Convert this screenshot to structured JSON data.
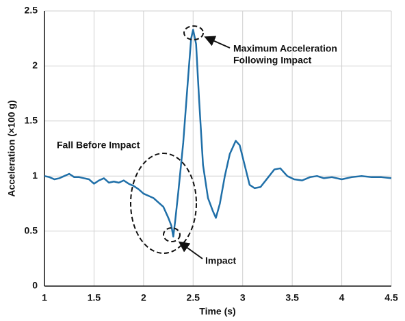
{
  "chart_data": {
    "type": "line",
    "x_label": "Time (s)",
    "y_label": "Acceleration (×100 g)",
    "annotations": {
      "peak": [
        "Maximum Acceleration",
        "Following Impact"
      ],
      "fall": "Fall Before Impact",
      "impact": "Impact"
    },
    "x": [
      1.0,
      1.05,
      1.1,
      1.15,
      1.2,
      1.25,
      1.3,
      1.35,
      1.4,
      1.45,
      1.5,
      1.55,
      1.6,
      1.65,
      1.7,
      1.75,
      1.8,
      1.85,
      1.9,
      1.95,
      2.0,
      2.05,
      2.1,
      2.15,
      2.2,
      2.25,
      2.28,
      2.3,
      2.32,
      2.35,
      2.4,
      2.45,
      2.48,
      2.5,
      2.53,
      2.56,
      2.6,
      2.65,
      2.7,
      2.73,
      2.77,
      2.82,
      2.87,
      2.93,
      2.97,
      3.02,
      3.07,
      3.12,
      3.18,
      3.25,
      3.32,
      3.38,
      3.45,
      3.52,
      3.6,
      3.68,
      3.75,
      3.82,
      3.9,
      4.0,
      4.1,
      4.2,
      4.3,
      4.4,
      4.5
    ],
    "values": [
      1.0,
      0.99,
      0.97,
      0.98,
      1.0,
      1.02,
      0.99,
      0.99,
      0.98,
      0.97,
      0.93,
      0.96,
      0.98,
      0.94,
      0.95,
      0.94,
      0.96,
      0.93,
      0.91,
      0.88,
      0.84,
      0.82,
      0.8,
      0.76,
      0.72,
      0.62,
      0.55,
      0.45,
      0.6,
      0.85,
      1.3,
      1.9,
      2.25,
      2.33,
      2.2,
      1.7,
      1.1,
      0.8,
      0.68,
      0.62,
      0.75,
      1.0,
      1.2,
      1.32,
      1.28,
      1.1,
      0.92,
      0.89,
      0.9,
      0.98,
      1.06,
      1.07,
      1.0,
      0.97,
      0.96,
      0.99,
      1.0,
      0.98,
      0.99,
      0.97,
      0.99,
      1.0,
      0.99,
      0.99,
      0.98
    ],
    "color": "#1f6fa8",
    "xlim": [
      1,
      4.5
    ],
    "xticks": [
      1,
      1.5,
      2,
      2.5,
      3,
      3.5,
      4,
      4.5
    ],
    "ylim": [
      0,
      2.5
    ],
    "yticks": [
      0,
      0.5,
      1,
      1.5,
      2,
      2.5
    ],
    "grid": true
  }
}
